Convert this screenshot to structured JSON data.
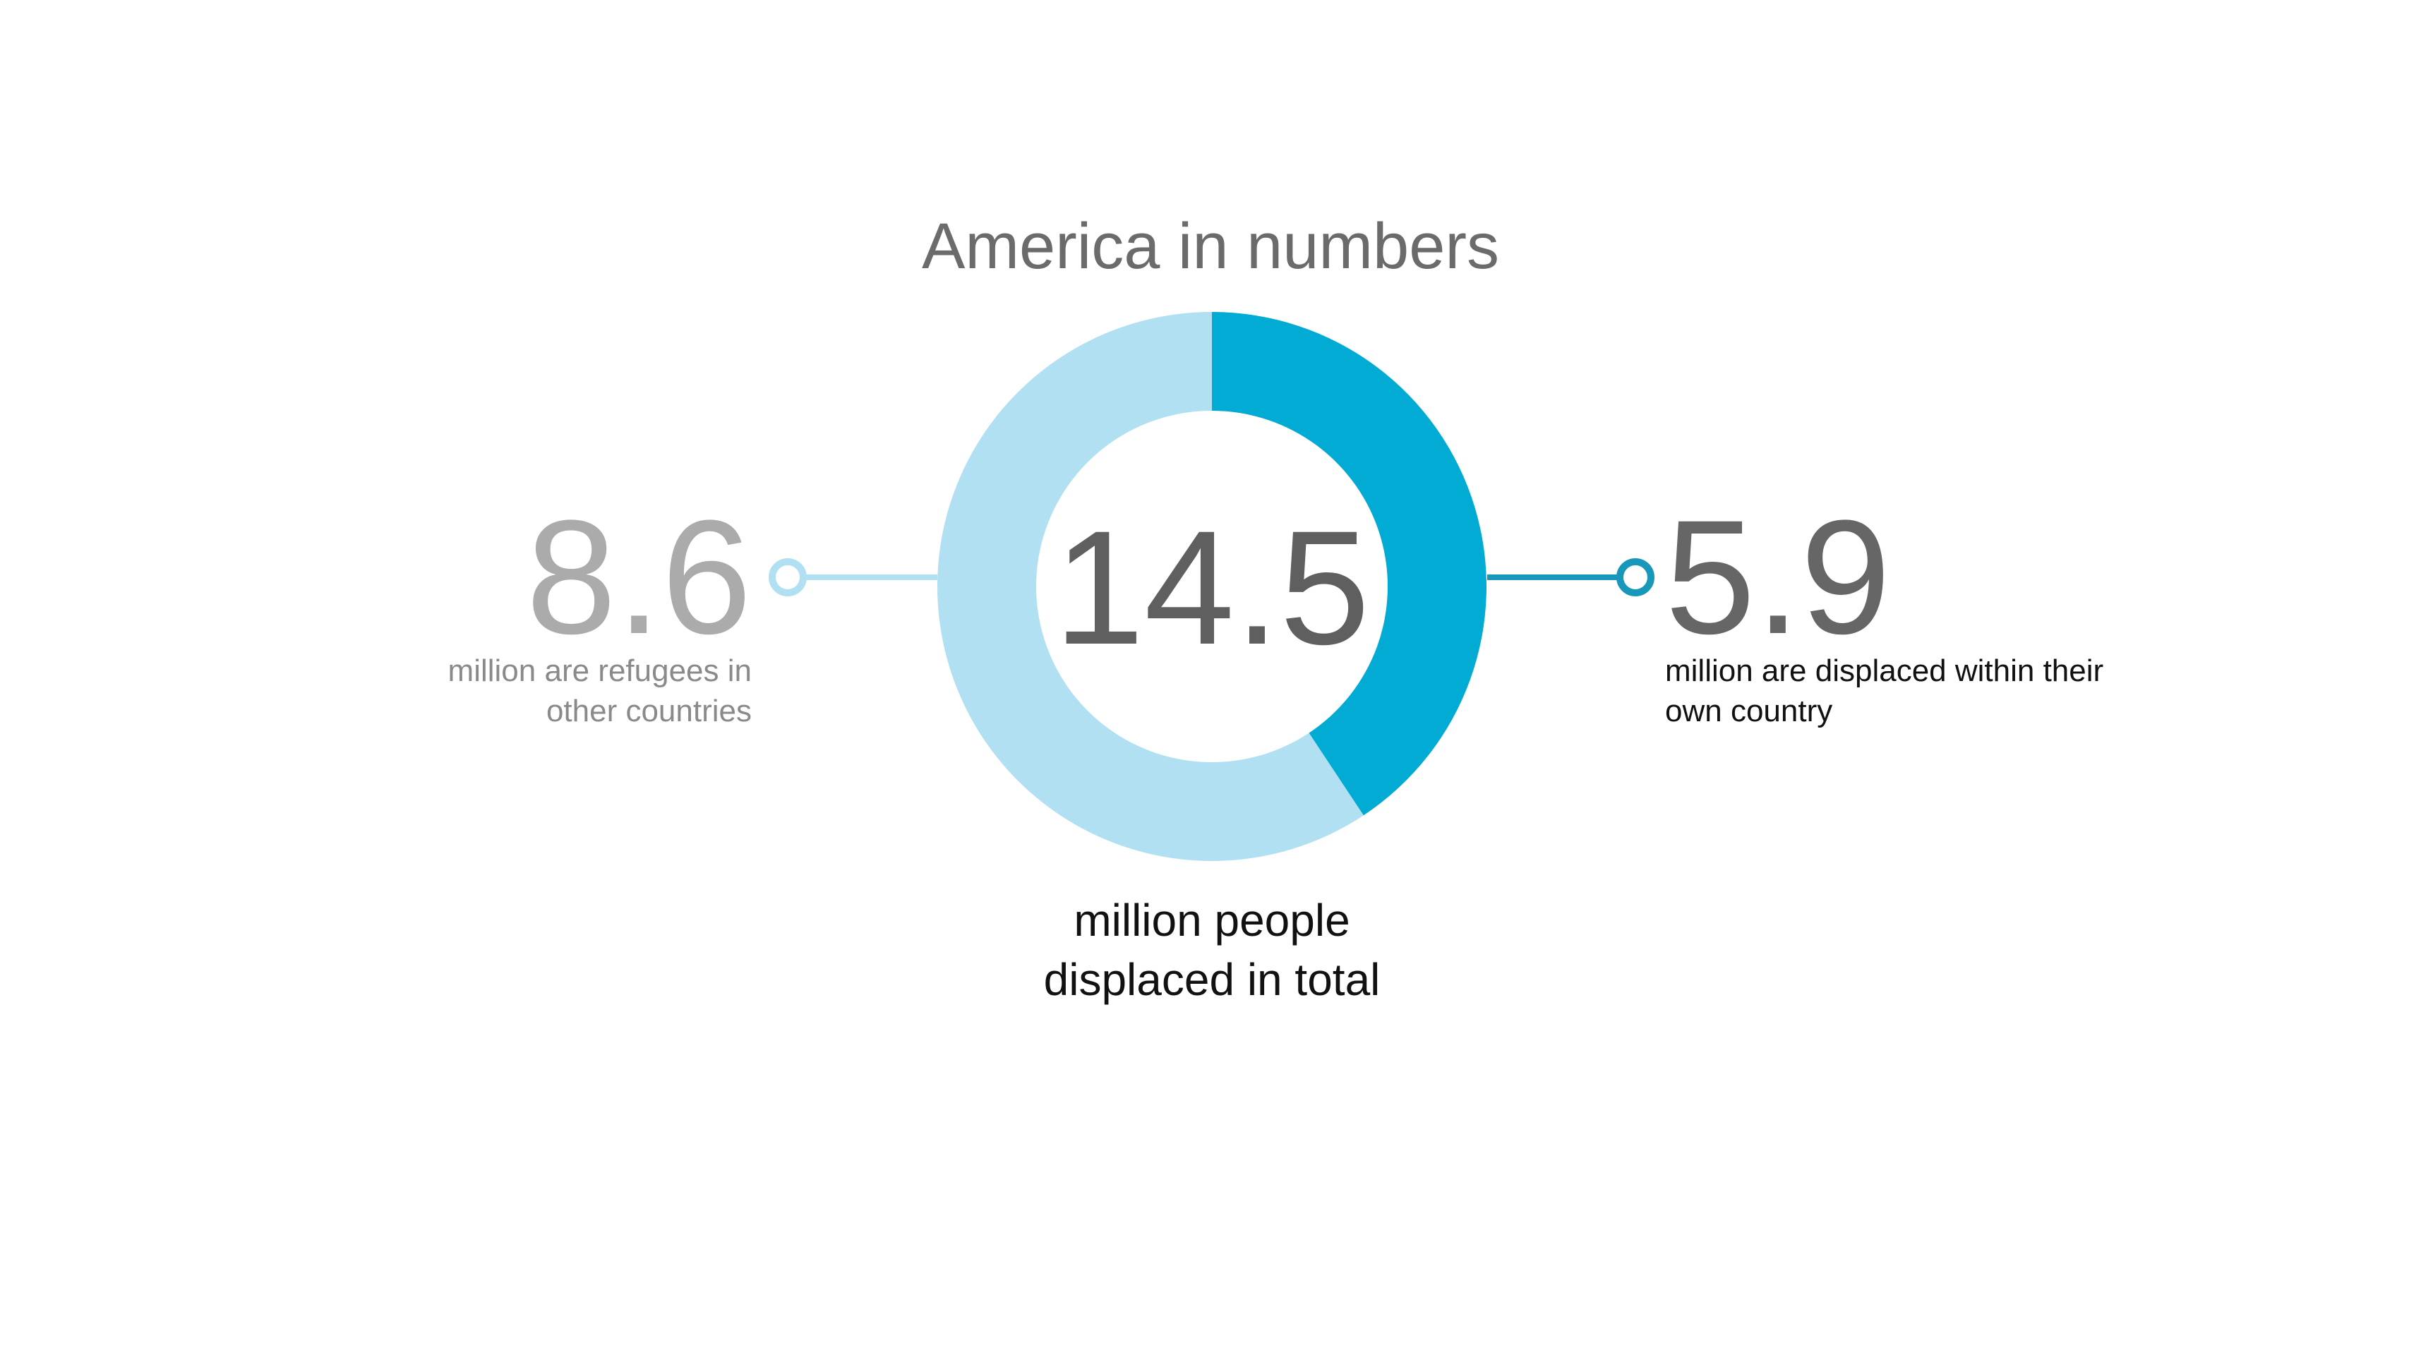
{
  "chart_data": {
    "type": "donut",
    "title": "America in numbers",
    "categories": [
      "million are displaced within their own country",
      "million are refugees in other countries"
    ],
    "values": [
      5.9,
      8.6
    ],
    "colors": [
      "#02abd3",
      "#b0e0f2"
    ],
    "connector_colors": [
      "#1797b9",
      "#b0e0f2"
    ],
    "value_label_colors": [
      "#666666",
      "#ababab"
    ],
    "total": 14.5,
    "total_caption": "million people displaced in total"
  }
}
